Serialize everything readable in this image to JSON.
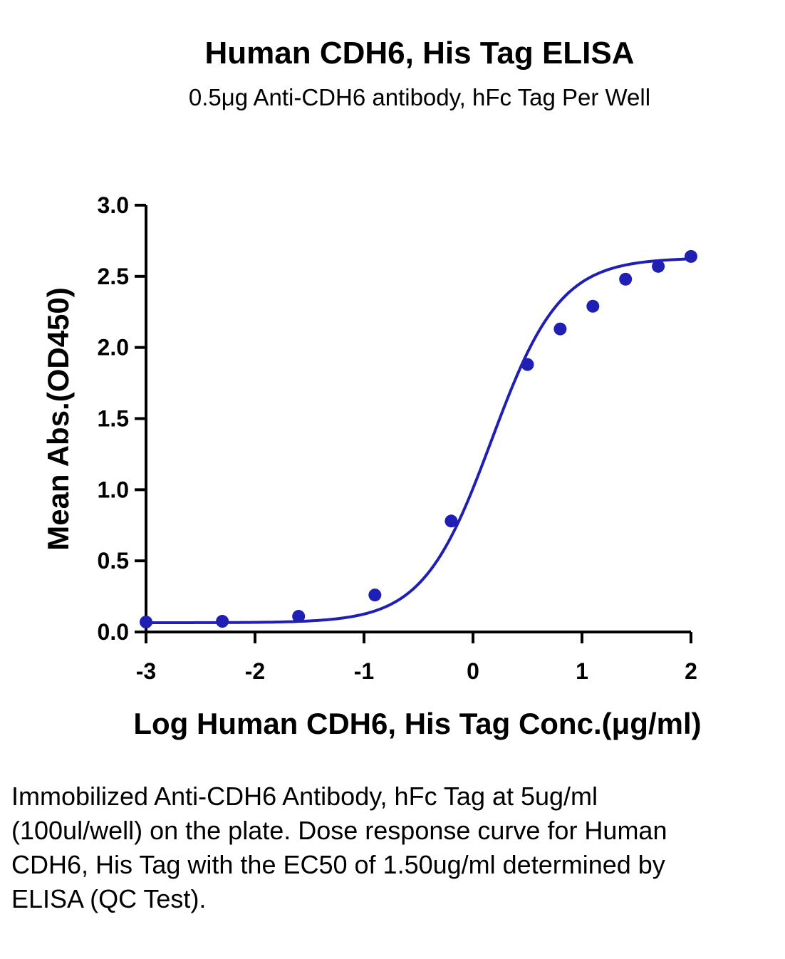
{
  "chart_data": {
    "type": "scatter",
    "title": "Human CDH6, His Tag ELISA",
    "subtitle": "0.5μg Anti-CDH6 antibody, hFc Tag Per Well",
    "xlabel": "Log Human CDH6, His Tag Conc.(μg/ml)",
    "ylabel": "Mean Abs.(OD450)",
    "xlim": [
      -3,
      2
    ],
    "ylim": [
      0,
      3.0
    ],
    "xticks": [
      "-3",
      "-2",
      "-1",
      "0",
      "1",
      "2"
    ],
    "yticks": [
      "0.0",
      "0.5",
      "1.0",
      "1.5",
      "2.0",
      "2.5",
      "3.0"
    ],
    "grid": false,
    "color": "#1f1fb4",
    "series": [
      {
        "x": [
          -3.0,
          -2.3,
          -1.6,
          -0.9,
          -0.2,
          0.5,
          0.8,
          1.1,
          1.4,
          1.7,
          2.0
        ],
        "y": [
          0.07,
          0.075,
          0.11,
          0.26,
          0.78,
          1.88,
          2.13,
          2.29,
          2.48,
          2.57,
          2.64
        ]
      }
    ],
    "fit": {
      "model": "4PL",
      "bottom": 0.065,
      "top": 2.63,
      "logEC50": 0.17,
      "hill": 1.38
    }
  },
  "caption": "Immobilized Anti-CDH6 Antibody, hFc Tag at 5ug/ml (100ul/well) on the plate. Dose response curve for Human CDH6, His Tag with the EC50 of 1.50ug/ml determined by ELISA (QC Test)."
}
